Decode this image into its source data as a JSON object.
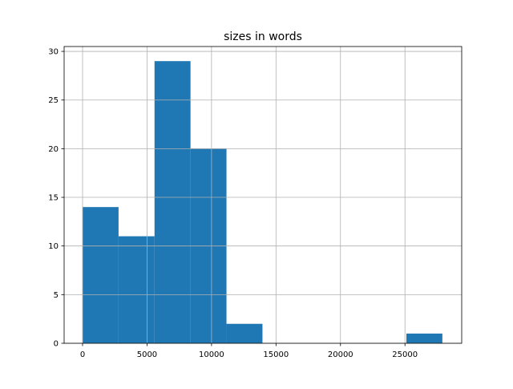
{
  "chart_data": {
    "type": "bar",
    "title": "sizes in words",
    "xlabel": "",
    "ylabel": "",
    "bin_edges": [
      0,
      2790,
      5580,
      8370,
      11160,
      13950,
      16740,
      19530,
      22320,
      25110,
      27900
    ],
    "values": [
      14,
      11,
      29,
      20,
      2,
      0,
      0,
      0,
      0,
      1
    ],
    "xlim": [
      -1430,
      29400
    ],
    "ylim": [
      0,
      30.5
    ],
    "xticks": [
      0,
      5000,
      10000,
      15000,
      20000,
      25000
    ],
    "xtick_labels": [
      "0",
      "5000",
      "10000",
      "15000",
      "20000",
      "25000"
    ],
    "yticks": [
      0,
      5,
      10,
      15,
      20,
      25,
      30
    ],
    "ytick_labels": [
      "0",
      "5",
      "10",
      "15",
      "20",
      "25",
      "30"
    ],
    "grid": true,
    "bar_color": "#1f77b4",
    "grid_color": "#b0b0b0"
  }
}
